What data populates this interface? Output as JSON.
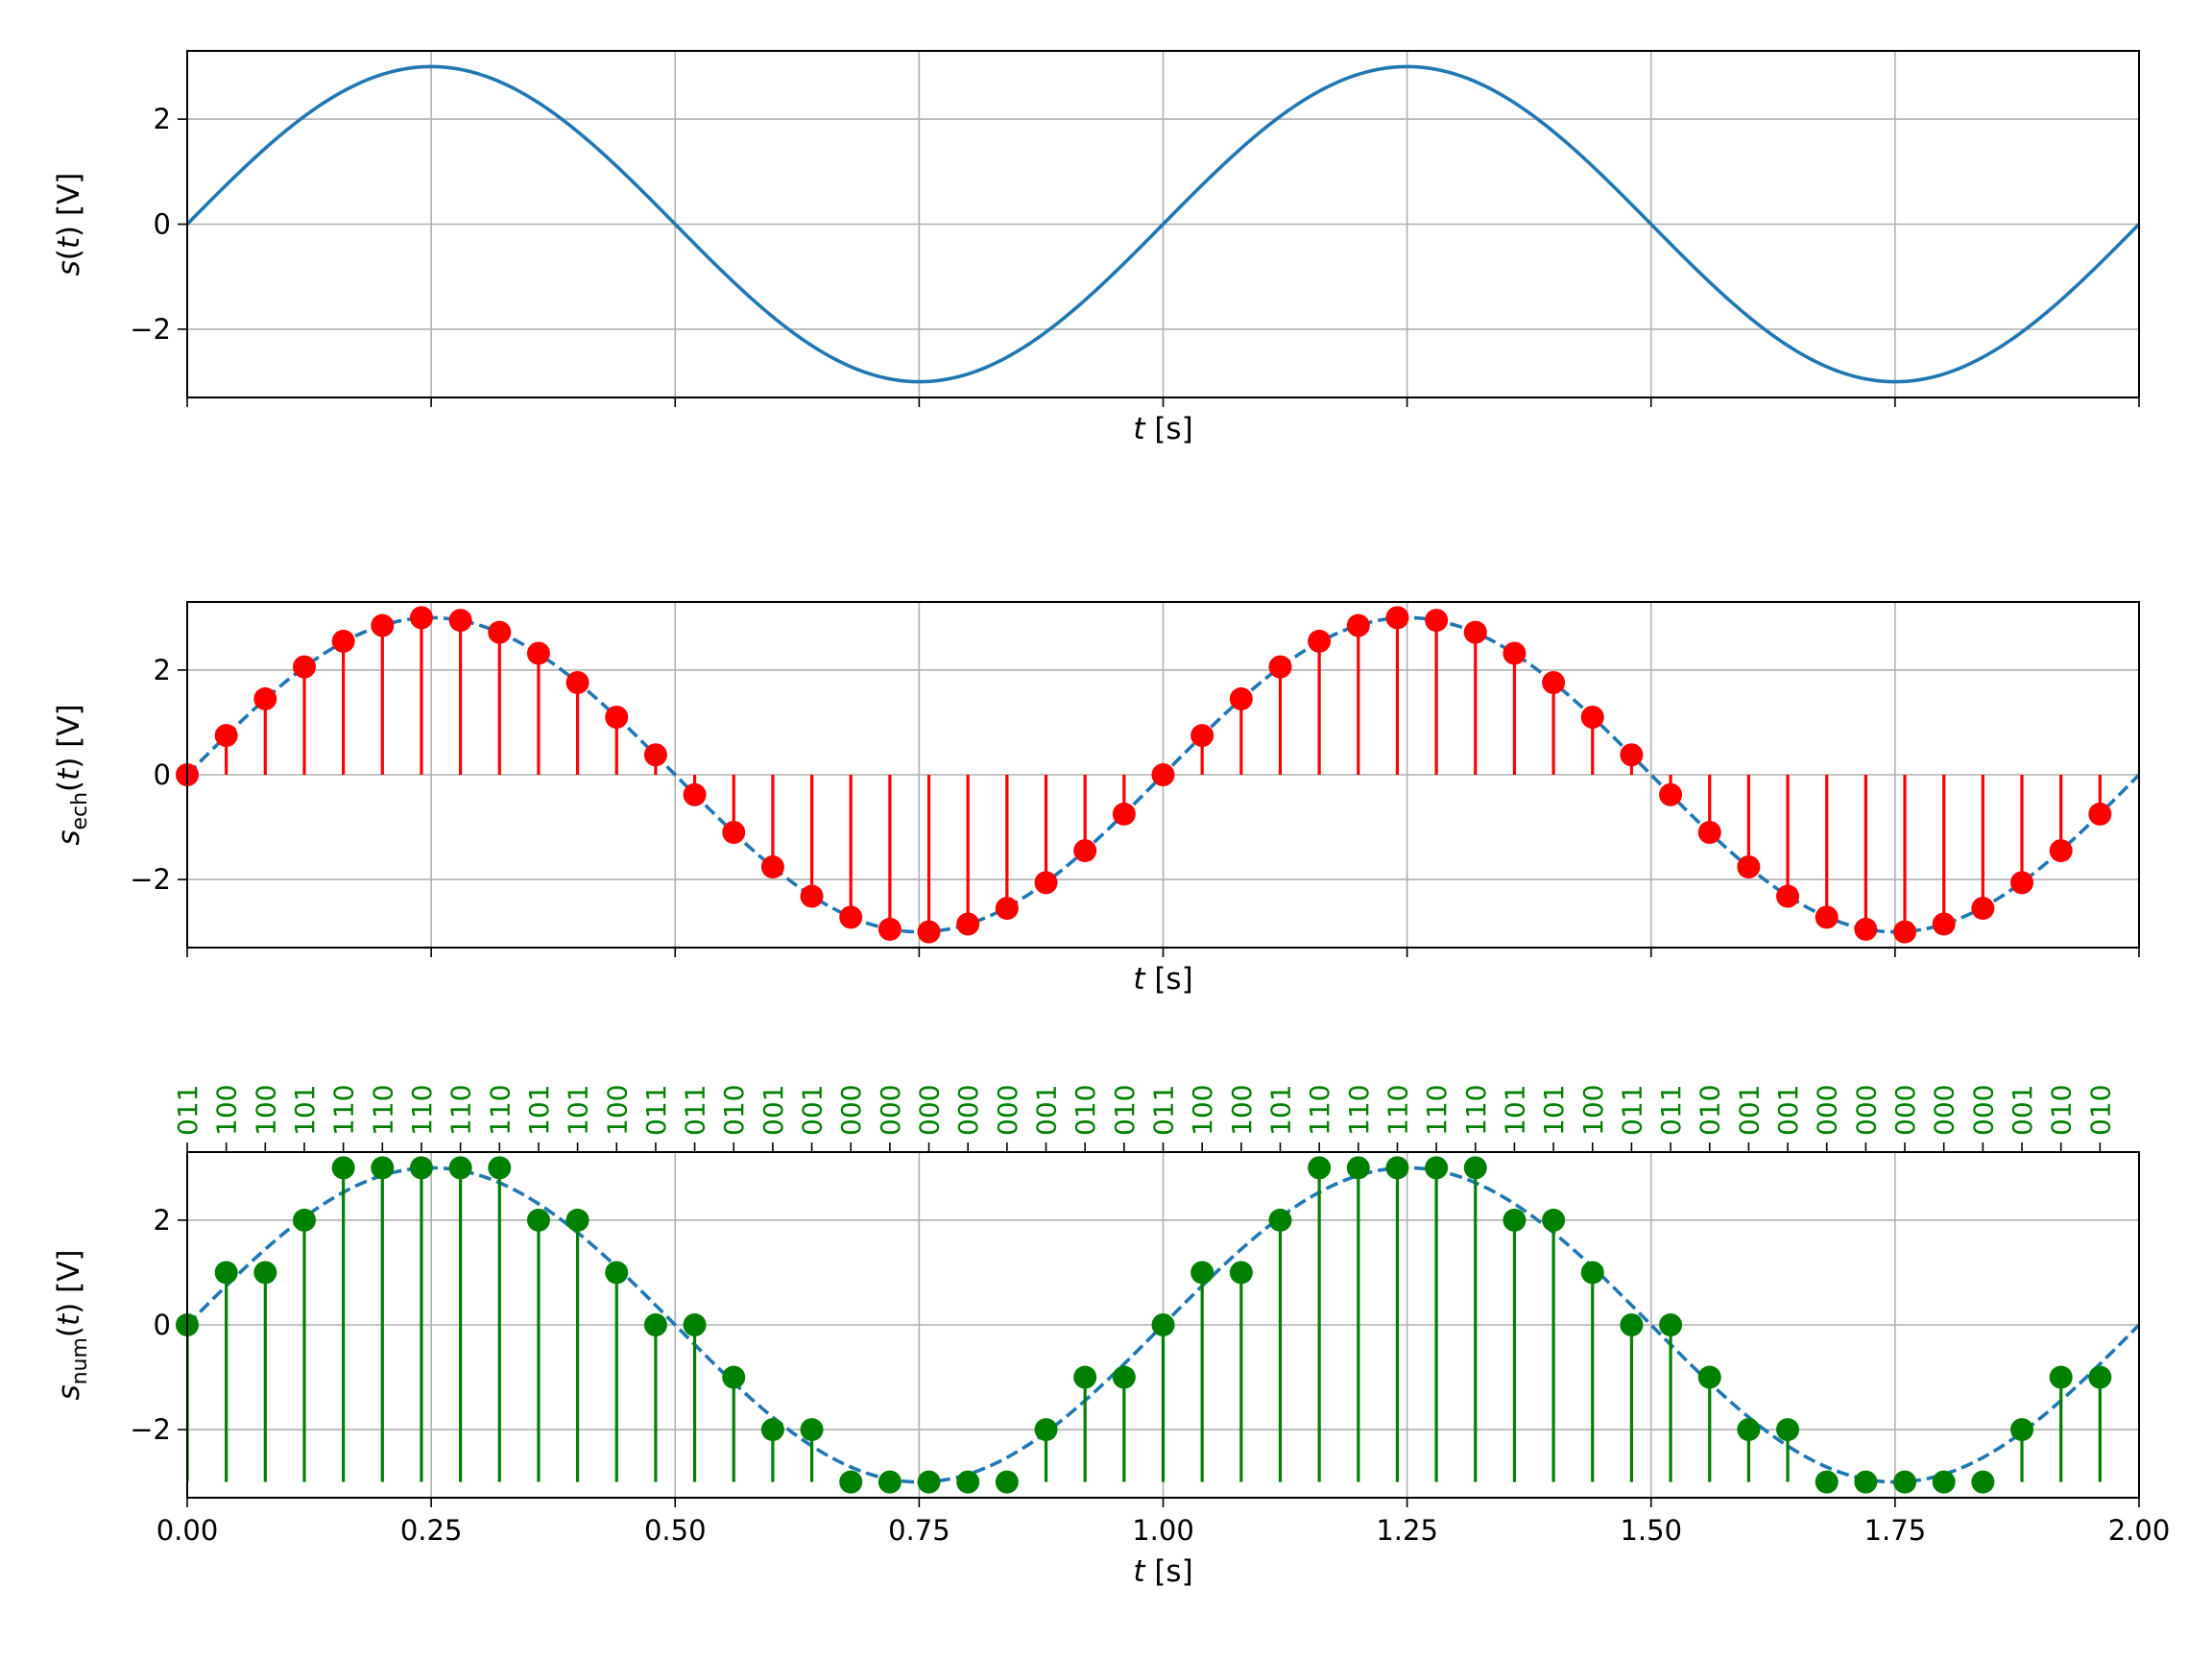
{
  "chart_data": [
    {
      "type": "line",
      "title": "",
      "xlabel": "t [s]",
      "ylabel": "s(t) [V]",
      "ylabel_parts": {
        "base": "s",
        "sub": "",
        "arg": "(t)",
        "unit": " [V]"
      },
      "xlim": [
        0,
        2
      ],
      "ylim": [
        -3.3,
        3.3
      ],
      "yticks": [
        "−2",
        "0",
        "2"
      ],
      "grid": true,
      "signal": {
        "amplitude": 3,
        "frequency": 1,
        "unit": "V"
      },
      "series": [
        {
          "kind": "line",
          "color": "#1f77b4",
          "x": [
            0.0,
            0.125,
            0.25,
            0.375,
            0.5,
            0.625,
            0.75,
            0.875,
            1.0,
            1.125,
            1.25,
            1.375,
            1.5,
            1.625,
            1.75,
            1.875,
            2.0
          ],
          "y": [
            0.0,
            2.12,
            3.0,
            2.12,
            0.0,
            -2.12,
            -3.0,
            -2.12,
            0.0,
            2.12,
            3.0,
            2.12,
            0.0,
            -2.12,
            -3.0,
            -2.12,
            0.0
          ]
        }
      ]
    },
    {
      "type": "stem",
      "title": "",
      "xlabel": "t [s]",
      "ylabel": "s_ech(t) [V]",
      "ylabel_parts": {
        "base": "s",
        "sub": "ech",
        "arg": "(t)",
        "unit": " [V]"
      },
      "xlim": [
        0,
        2
      ],
      "ylim": [
        -3.3,
        3.3
      ],
      "yticks": [
        "−2",
        "0",
        "2"
      ],
      "grid": true,
      "sample_times": [
        0.0,
        0.04,
        0.08,
        0.12,
        0.16,
        0.2,
        0.24,
        0.28,
        0.32,
        0.36,
        0.4,
        0.44,
        0.48,
        0.52,
        0.56,
        0.6,
        0.64,
        0.68,
        0.72,
        0.76,
        0.8,
        0.84,
        0.88,
        0.92,
        0.96,
        1.0,
        1.04,
        1.08,
        1.12,
        1.16,
        1.2,
        1.24,
        1.28,
        1.32,
        1.36,
        1.4,
        1.44,
        1.48,
        1.52,
        1.56,
        1.6,
        1.64,
        1.68,
        1.72,
        1.76,
        1.8,
        1.84,
        1.88,
        1.92,
        1.96
      ],
      "sample_values": [
        0.0,
        0.75,
        1.45,
        2.06,
        2.55,
        2.85,
        3.0,
        2.95,
        2.72,
        2.32,
        1.76,
        1.1,
        0.38,
        -0.38,
        -1.1,
        -1.76,
        -2.32,
        -2.72,
        -2.95,
        -3.0,
        -2.85,
        -2.55,
        -2.06,
        -1.45,
        -0.75,
        0.0,
        0.75,
        1.45,
        2.06,
        2.55,
        2.85,
        3.0,
        2.95,
        2.72,
        2.32,
        1.76,
        1.1,
        0.38,
        -0.38,
        -1.1,
        -1.76,
        -2.32,
        -2.72,
        -2.95,
        -3.0,
        -2.85,
        -2.55,
        -2.06,
        -1.45,
        -0.75
      ],
      "colors": {
        "stem": "#ff0000",
        "reference": "#1f77b4"
      }
    },
    {
      "type": "stem",
      "title": "",
      "xlabel": "t [s]",
      "ylabel": "s_num(t) [V]",
      "ylabel_parts": {
        "base": "s",
        "sub": "num",
        "arg": "(t)",
        "unit": " [V]"
      },
      "xlim": [
        0,
        2
      ],
      "ylim": [
        -3.3,
        3.3
      ],
      "yticks": [
        "−2",
        "0",
        "2"
      ],
      "xticks": [
        "0.00",
        "0.25",
        "0.50",
        "0.75",
        "1.00",
        "1.25",
        "1.50",
        "1.75",
        "2.00"
      ],
      "grid": true,
      "stem_baseline": -3,
      "sample_times": [
        0.0,
        0.04,
        0.08,
        0.12,
        0.16,
        0.2,
        0.24,
        0.28,
        0.32,
        0.36,
        0.4,
        0.44,
        0.48,
        0.52,
        0.56,
        0.6,
        0.64,
        0.68,
        0.72,
        0.76,
        0.8,
        0.84,
        0.88,
        0.92,
        0.96,
        1.0,
        1.04,
        1.08,
        1.12,
        1.16,
        1.2,
        1.24,
        1.28,
        1.32,
        1.36,
        1.4,
        1.44,
        1.48,
        1.52,
        1.56,
        1.6,
        1.64,
        1.68,
        1.72,
        1.76,
        1.8,
        1.84,
        1.88,
        1.92,
        1.96
      ],
      "sample_values": [
        0,
        1,
        1,
        2,
        3,
        3,
        3,
        3,
        3,
        2,
        2,
        1,
        0,
        0,
        -1,
        -2,
        -2,
        -3,
        -3,
        -3,
        -3,
        -3,
        -2,
        -1,
        -1,
        0,
        1,
        1,
        2,
        3,
        3,
        3,
        3,
        3,
        2,
        2,
        1,
        0,
        0,
        -1,
        -2,
        -2,
        -3,
        -3,
        -3,
        -3,
        -3,
        -2,
        -1,
        -1
      ],
      "binary_codes": [
        "011",
        "100",
        "100",
        "101",
        "110",
        "110",
        "110",
        "110",
        "110",
        "101",
        "101",
        "100",
        "011",
        "011",
        "010",
        "001",
        "001",
        "000",
        "000",
        "000",
        "000",
        "000",
        "001",
        "010",
        "010",
        "011",
        "100",
        "100",
        "101",
        "110",
        "110",
        "110",
        "110",
        "110",
        "101",
        "101",
        "100",
        "011",
        "011",
        "010",
        "001",
        "001",
        "000",
        "000",
        "000",
        "000",
        "000",
        "001",
        "010",
        "010"
      ],
      "colors": {
        "stem": "#008000",
        "reference": "#1f77b4",
        "codes": "#008000"
      }
    }
  ]
}
